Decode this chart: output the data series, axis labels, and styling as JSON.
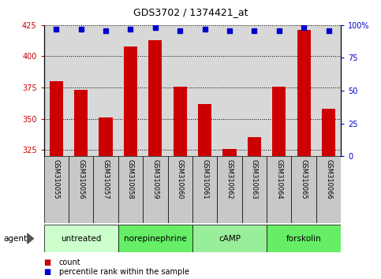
{
  "title": "GDS3702 / 1374421_at",
  "samples": [
    "GSM310055",
    "GSM310056",
    "GSM310057",
    "GSM310058",
    "GSM310059",
    "GSM310060",
    "GSM310061",
    "GSM310062",
    "GSM310063",
    "GSM310064",
    "GSM310065",
    "GSM310066"
  ],
  "counts": [
    380,
    373,
    351,
    408,
    413,
    376,
    362,
    326,
    335,
    376,
    421,
    358
  ],
  "percentile_ranks": [
    97,
    97,
    96,
    97,
    98,
    96,
    97,
    96,
    96,
    96,
    98,
    96
  ],
  "groups": [
    {
      "label": "untreated",
      "start": 0,
      "end": 3,
      "color": "#ccffcc"
    },
    {
      "label": "norepinephrine",
      "start": 3,
      "end": 6,
      "color": "#66ee66"
    },
    {
      "label": "cAMP",
      "start": 6,
      "end": 9,
      "color": "#99ee99"
    },
    {
      "label": "forskolin",
      "start": 9,
      "end": 12,
      "color": "#66ee66"
    }
  ],
  "ylim_left": [
    320,
    425
  ],
  "ylim_right": [
    0,
    100
  ],
  "yticks_left": [
    325,
    350,
    375,
    400,
    425
  ],
  "yticks_right": [
    0,
    25,
    50,
    75,
    100
  ],
  "bar_color": "#cc0000",
  "dot_color": "#0000cc",
  "plot_bg_color": "#d8d8d8",
  "sample_box_color": "#c8c8c8",
  "legend_count_label": "count",
  "legend_pct_label": "percentile rank within the sample"
}
